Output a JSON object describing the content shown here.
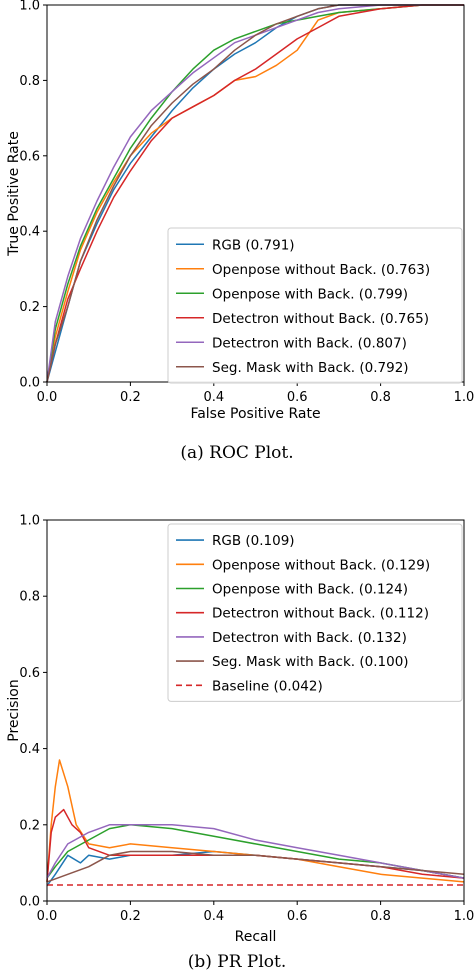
{
  "chart_data": [
    {
      "type": "line",
      "caption": "(a) ROC Plot.",
      "xlabel": "False Positive Rate",
      "ylabel": "True Positive Rate",
      "xlim": [
        0,
        1
      ],
      "ylim": [
        0,
        1
      ],
      "xticks": [
        "0.0",
        "0.2",
        "0.4",
        "0.6",
        "0.8",
        "1.0"
      ],
      "yticks": [
        "0.0",
        "0.2",
        "0.4",
        "0.6",
        "0.8",
        "1.0"
      ],
      "grid": false,
      "legend_position": "lower-right",
      "series": [
        {
          "name": "RGB (0.791)",
          "color": "#1f77b4",
          "x": [
            0,
            0.02,
            0.05,
            0.08,
            0.12,
            0.16,
            0.2,
            0.25,
            0.3,
            0.35,
            0.4,
            0.45,
            0.5,
            0.55,
            0.6,
            0.65,
            0.7,
            0.8,
            0.9,
            1.0
          ],
          "y": [
            0,
            0.08,
            0.2,
            0.32,
            0.42,
            0.51,
            0.58,
            0.65,
            0.72,
            0.78,
            0.83,
            0.87,
            0.9,
            0.94,
            0.97,
            0.99,
            1.0,
            1.0,
            1.0,
            1.0
          ]
        },
        {
          "name": "Openpose without Back. (0.763)",
          "color": "#ff7f0e",
          "x": [
            0,
            0.02,
            0.05,
            0.08,
            0.12,
            0.16,
            0.2,
            0.25,
            0.3,
            0.35,
            0.4,
            0.45,
            0.5,
            0.55,
            0.6,
            0.65,
            0.7,
            0.8,
            0.9,
            1.0
          ],
          "y": [
            0,
            0.12,
            0.24,
            0.35,
            0.45,
            0.53,
            0.6,
            0.66,
            0.7,
            0.73,
            0.76,
            0.8,
            0.81,
            0.84,
            0.88,
            0.96,
            0.98,
            0.99,
            1.0,
            1.0
          ]
        },
        {
          "name": "Openpose with Back. (0.799)",
          "color": "#2ca02c",
          "x": [
            0,
            0.02,
            0.05,
            0.08,
            0.12,
            0.16,
            0.2,
            0.25,
            0.3,
            0.35,
            0.4,
            0.45,
            0.5,
            0.55,
            0.6,
            0.65,
            0.7,
            0.8,
            0.9,
            1.0
          ],
          "y": [
            0,
            0.14,
            0.26,
            0.36,
            0.46,
            0.54,
            0.62,
            0.7,
            0.77,
            0.83,
            0.88,
            0.91,
            0.93,
            0.95,
            0.96,
            0.97,
            0.98,
            0.99,
            1.0,
            1.0
          ]
        },
        {
          "name": "Detectron without Back. (0.765)",
          "color": "#d62728",
          "x": [
            0,
            0.02,
            0.05,
            0.08,
            0.12,
            0.16,
            0.2,
            0.25,
            0.3,
            0.35,
            0.4,
            0.45,
            0.5,
            0.55,
            0.6,
            0.65,
            0.7,
            0.8,
            0.9,
            1.0
          ],
          "y": [
            0,
            0.1,
            0.22,
            0.3,
            0.4,
            0.49,
            0.56,
            0.64,
            0.7,
            0.73,
            0.76,
            0.8,
            0.83,
            0.87,
            0.91,
            0.94,
            0.97,
            0.99,
            1.0,
            1.0
          ]
        },
        {
          "name": "Detectron with Back. (0.807)",
          "color": "#9467bd",
          "x": [
            0,
            0.02,
            0.05,
            0.08,
            0.12,
            0.16,
            0.2,
            0.25,
            0.3,
            0.35,
            0.4,
            0.45,
            0.5,
            0.55,
            0.6,
            0.65,
            0.7,
            0.8,
            0.9,
            1.0
          ],
          "y": [
            0,
            0.16,
            0.28,
            0.38,
            0.48,
            0.57,
            0.65,
            0.72,
            0.77,
            0.82,
            0.86,
            0.9,
            0.92,
            0.94,
            0.96,
            0.98,
            0.99,
            1.0,
            1.0,
            1.0
          ]
        },
        {
          "name": "Seg. Mask with Back. (0.792)",
          "color": "#8c564b",
          "x": [
            0,
            0.02,
            0.05,
            0.08,
            0.12,
            0.16,
            0.2,
            0.25,
            0.3,
            0.35,
            0.4,
            0.45,
            0.5,
            0.55,
            0.6,
            0.65,
            0.7,
            0.8,
            0.9,
            1.0
          ],
          "y": [
            0,
            0.1,
            0.2,
            0.32,
            0.43,
            0.52,
            0.6,
            0.68,
            0.74,
            0.79,
            0.83,
            0.88,
            0.92,
            0.95,
            0.97,
            0.99,
            1.0,
            1.0,
            1.0,
            1.0
          ]
        }
      ]
    },
    {
      "type": "line",
      "caption": "(b) PR Plot.",
      "xlabel": "Recall",
      "ylabel": "Precision",
      "xlim": [
        0,
        1
      ],
      "ylim": [
        0,
        1
      ],
      "xticks": [
        "0.0",
        "0.2",
        "0.4",
        "0.6",
        "0.8",
        "1.0"
      ],
      "yticks": [
        "0.0",
        "0.2",
        "0.4",
        "0.6",
        "0.8",
        "1.0"
      ],
      "grid": false,
      "legend_position": "upper-right",
      "series": [
        {
          "name": "RGB (0.109)",
          "color": "#1f77b4",
          "x": [
            0,
            0.02,
            0.05,
            0.08,
            0.1,
            0.15,
            0.2,
            0.3,
            0.4,
            0.5,
            0.6,
            0.7,
            0.8,
            0.9,
            1.0
          ],
          "y": [
            0.04,
            0.07,
            0.12,
            0.1,
            0.12,
            0.11,
            0.12,
            0.12,
            0.13,
            0.12,
            0.11,
            0.1,
            0.09,
            0.08,
            0.06
          ]
        },
        {
          "name": "Openpose without Back. (0.129)",
          "color": "#ff7f0e",
          "x": [
            0,
            0.01,
            0.02,
            0.03,
            0.05,
            0.07,
            0.1,
            0.15,
            0.2,
            0.3,
            0.4,
            0.5,
            0.6,
            0.7,
            0.8,
            0.9,
            1.0
          ],
          "y": [
            0.05,
            0.2,
            0.3,
            0.37,
            0.3,
            0.2,
            0.15,
            0.14,
            0.15,
            0.14,
            0.13,
            0.12,
            0.11,
            0.09,
            0.07,
            0.06,
            0.05
          ]
        },
        {
          "name": "Openpose with Back. (0.124)",
          "color": "#2ca02c",
          "x": [
            0,
            0.02,
            0.05,
            0.1,
            0.15,
            0.2,
            0.3,
            0.4,
            0.5,
            0.6,
            0.7,
            0.8,
            0.9,
            1.0
          ],
          "y": [
            0.06,
            0.09,
            0.13,
            0.16,
            0.19,
            0.2,
            0.19,
            0.17,
            0.15,
            0.13,
            0.11,
            0.1,
            0.08,
            0.06
          ]
        },
        {
          "name": "Detectron without Back. (0.112)",
          "color": "#d62728",
          "x": [
            0,
            0.01,
            0.02,
            0.04,
            0.06,
            0.08,
            0.1,
            0.15,
            0.2,
            0.3,
            0.4,
            0.5,
            0.6,
            0.7,
            0.8,
            0.9,
            1.0
          ],
          "y": [
            0.05,
            0.18,
            0.22,
            0.24,
            0.2,
            0.18,
            0.14,
            0.12,
            0.12,
            0.12,
            0.12,
            0.12,
            0.11,
            0.1,
            0.09,
            0.07,
            0.06
          ]
        },
        {
          "name": "Detectron with Back. (0.132)",
          "color": "#9467bd",
          "x": [
            0,
            0.02,
            0.05,
            0.1,
            0.15,
            0.2,
            0.3,
            0.4,
            0.5,
            0.6,
            0.7,
            0.8,
            0.9,
            1.0
          ],
          "y": [
            0.06,
            0.1,
            0.15,
            0.18,
            0.2,
            0.2,
            0.2,
            0.19,
            0.16,
            0.14,
            0.12,
            0.1,
            0.08,
            0.06
          ]
        },
        {
          "name": "Seg. Mask with Back. (0.100)",
          "color": "#8c564b",
          "x": [
            0,
            0.05,
            0.1,
            0.15,
            0.2,
            0.3,
            0.4,
            0.5,
            0.6,
            0.7,
            0.8,
            0.9,
            1.0
          ],
          "y": [
            0.05,
            0.07,
            0.09,
            0.12,
            0.13,
            0.13,
            0.12,
            0.12,
            0.11,
            0.1,
            0.09,
            0.08,
            0.07
          ]
        },
        {
          "name": "Baseline (0.042)",
          "color": "#d62728",
          "dashed": true,
          "x": [
            0,
            1
          ],
          "y": [
            0.042,
            0.042
          ]
        }
      ]
    }
  ]
}
